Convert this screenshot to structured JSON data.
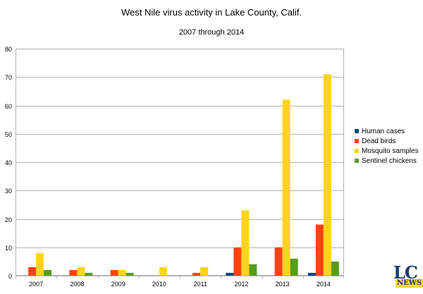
{
  "chart_data": {
    "type": "bar",
    "title": "West Nile virus activity in Lake County, Calif.",
    "subtitle": "2007 through 2014",
    "xlabel": "",
    "ylabel": "",
    "categories": [
      "2007",
      "2008",
      "2009",
      "2010",
      "2011",
      "2012",
      "2013",
      "2014"
    ],
    "ylim": [
      0,
      80
    ],
    "yticks": [
      0,
      10,
      20,
      30,
      40,
      50,
      60,
      70,
      80
    ],
    "grid": true,
    "legend_position": "right",
    "series": [
      {
        "name": "Human cases",
        "color": "#004586",
        "values": [
          0,
          0,
          0,
          0,
          0,
          1,
          0,
          1
        ]
      },
      {
        "name": "Dead birds",
        "color": "#ff420e",
        "values": [
          3,
          2,
          2,
          0,
          1,
          10,
          10,
          18
        ]
      },
      {
        "name": "Mosquito samples",
        "color": "#ffd320",
        "values": [
          8,
          3,
          2,
          3,
          3,
          23,
          62,
          71
        ]
      },
      {
        "name": "Sentinel chickens",
        "color": "#579d1c",
        "values": [
          2,
          1,
          1,
          0,
          0,
          4,
          6,
          5
        ]
      }
    ]
  },
  "logo": {
    "main": "LC",
    "sub": "NEWS"
  }
}
